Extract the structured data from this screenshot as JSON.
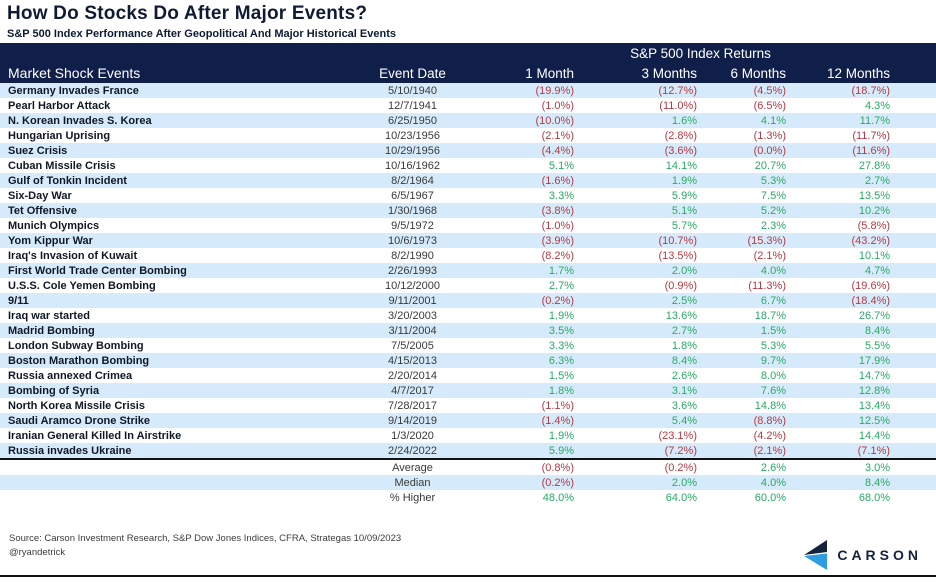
{
  "title": "How Do Stocks Do After Major Events?",
  "subtitle": "S&P 500 Index Performance After Geopolitical And Major Historical Events",
  "chart_data": {
    "type": "table",
    "group_header": "S&P 500 Index Returns",
    "columns": [
      "Market Shock Events",
      "Event Date",
      "1 Month",
      "3 Months",
      "6 Months",
      "12 Months"
    ],
    "negative_format": "parentheses mean negative returns",
    "rows": [
      [
        "Germany Invades France",
        "5/10/1940",
        "(19.9%)",
        "(12.7%)",
        "(4.5%)",
        "(18.7%)"
      ],
      [
        "Pearl Harbor Attack",
        "12/7/1941",
        "(1.0%)",
        "(11.0%)",
        "(6.5%)",
        "4.3%"
      ],
      [
        "N. Korean Invades S. Korea",
        "6/25/1950",
        "(10.0%)",
        "1.6%",
        "4.1%",
        "11.7%"
      ],
      [
        "Hungarian Uprising",
        "10/23/1956",
        "(2.1%)",
        "(2.8%)",
        "(1.3%)",
        "(11.7%)"
      ],
      [
        "Suez Crisis",
        "10/29/1956",
        "(4.4%)",
        "(3.6%)",
        "(0.0%)",
        "(11.6%)"
      ],
      [
        "Cuban Missile Crisis",
        "10/16/1962",
        "5.1%",
        "14.1%",
        "20.7%",
        "27.8%"
      ],
      [
        "Gulf of Tonkin Incident",
        "8/2/1964",
        "(1.6%)",
        "1.9%",
        "5.3%",
        "2.7%"
      ],
      [
        "Six-Day War",
        "6/5/1967",
        "3.3%",
        "5.9%",
        "7.5%",
        "13.5%"
      ],
      [
        "Tet Offensive",
        "1/30/1968",
        "(3.8%)",
        "5.1%",
        "5.2%",
        "10.2%"
      ],
      [
        "Munich Olympics",
        "9/5/1972",
        "(1.0%)",
        "5.7%",
        "2.3%",
        "(5.8%)"
      ],
      [
        "Yom Kippur War",
        "10/6/1973",
        "(3.9%)",
        "(10.7%)",
        "(15.3%)",
        "(43.2%)"
      ],
      [
        "Iraq's Invasion of Kuwait",
        "8/2/1990",
        "(8.2%)",
        "(13.5%)",
        "(2.1%)",
        "10.1%"
      ],
      [
        "First World Trade Center Bombing",
        "2/26/1993",
        "1.7%",
        "2.0%",
        "4.0%",
        "4.7%"
      ],
      [
        "U.S.S. Cole Yemen Bombing",
        "10/12/2000",
        "2.7%",
        "(0.9%)",
        "(11.3%)",
        "(19.6%)"
      ],
      [
        "9/11",
        "9/11/2001",
        "(0.2%)",
        "2.5%",
        "6.7%",
        "(18.4%)"
      ],
      [
        "Iraq war started",
        "3/20/2003",
        "1.9%",
        "13.6%",
        "18.7%",
        "26.7%"
      ],
      [
        "Madrid Bombing",
        "3/11/2004",
        "3.5%",
        "2.7%",
        "1.5%",
        "8.4%"
      ],
      [
        "London Subway Bombing",
        "7/5/2005",
        "3.3%",
        "1.8%",
        "5.3%",
        "5.5%"
      ],
      [
        "Boston Marathon Bombing",
        "4/15/2013",
        "6.3%",
        "8.4%",
        "9.7%",
        "17.9%"
      ],
      [
        "Russia annexed Crimea",
        "2/20/2014",
        "1.5%",
        "2.6%",
        "8.0%",
        "14.7%"
      ],
      [
        "Bombing of Syria",
        "4/7/2017",
        "1.8%",
        "3.1%",
        "7.6%",
        "12.8%"
      ],
      [
        "North Korea Missile Crisis",
        "7/28/2017",
        "(1.1%)",
        "3.6%",
        "14.8%",
        "13.4%"
      ],
      [
        "Saudi Aramco Drone Strike",
        "9/14/2019",
        "(1.4%)",
        "5.4%",
        "(8.8%)",
        "12.5%"
      ],
      [
        "Iranian General Killed In Airstrike",
        "1/3/2020",
        "1.9%",
        "(23.1%)",
        "(4.2%)",
        "14.4%"
      ],
      [
        "Russia invades Ukraine",
        "2/24/2022",
        "5.9%",
        "(7.2%)",
        "(2.1%)",
        "(7.1%)"
      ]
    ],
    "summary_rows": [
      [
        "Average",
        "(0.8%)",
        "(0.2%)",
        "2.6%",
        "3.0%"
      ],
      [
        "Median",
        "(0.2%)",
        "2.0%",
        "4.0%",
        "8.4%"
      ],
      [
        "% Higher",
        "48.0%",
        "64.0%",
        "60.0%",
        "68.0%"
      ]
    ]
  },
  "footer": {
    "source": "Source: Carson Investment Research, S&P Dow Jones Indices, CFRA, Strategas 10/09/2023",
    "handle": "@ryandetrick",
    "logo_text": "CARSON",
    "logo_icon": "carson-chevron-icon"
  },
  "colors": {
    "header_bg": "#101f4a",
    "row_stripe": "#d5eafa",
    "positive": "#2aaa64",
    "negative": "#b23b43",
    "logo_navy": "#14223c",
    "logo_blue": "#2d9ce0"
  }
}
